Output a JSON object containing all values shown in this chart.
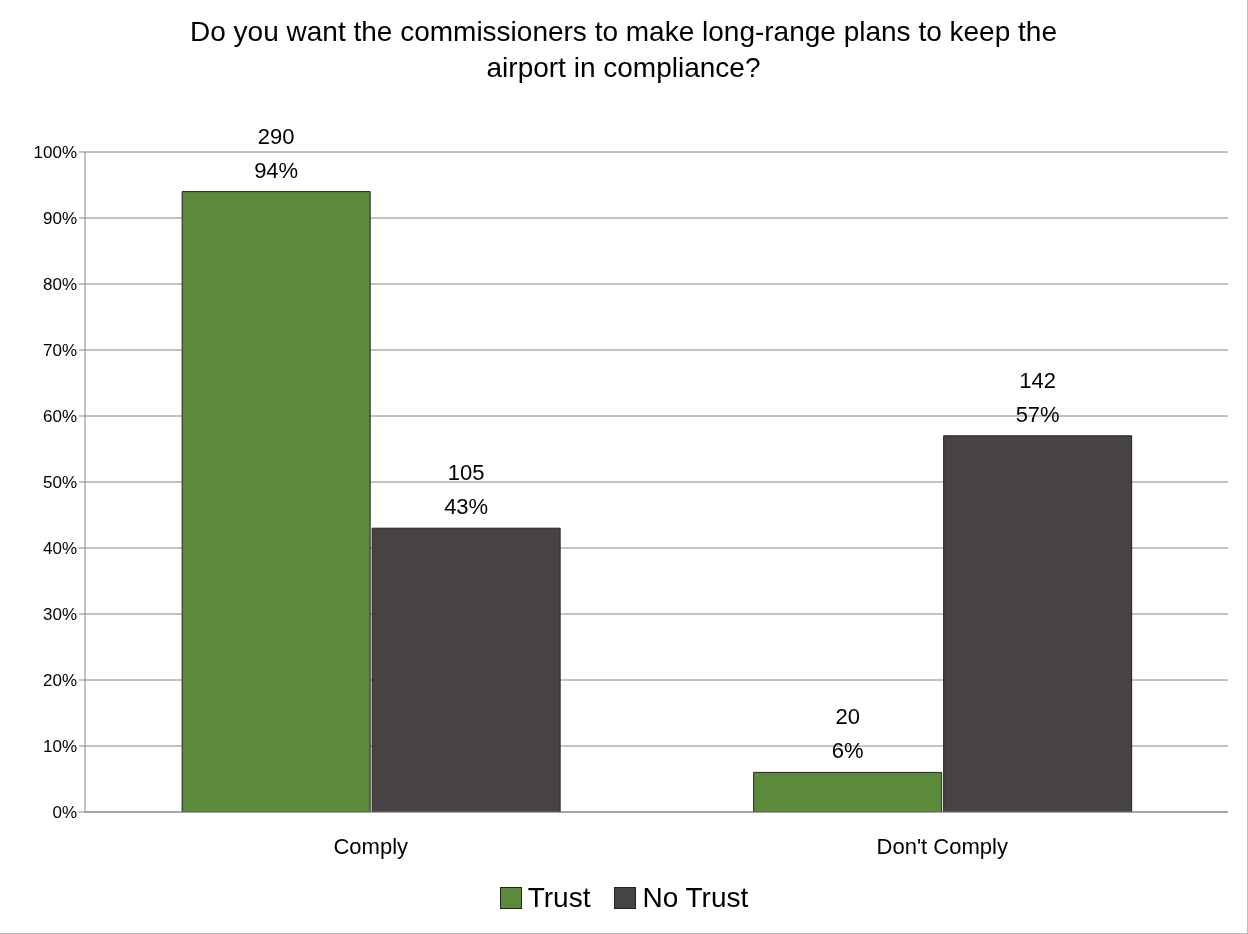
{
  "chart_data": {
    "type": "bar",
    "title": "Do you want the commissioners to make long-range plans to keep the airport in compliance?",
    "categories": [
      "Comply",
      "Don't Comply"
    ],
    "series": [
      {
        "name": "Trust",
        "color": "#5b8a3a",
        "values": [
          94,
          6
        ],
        "value_labels": [
          "290\n94%",
          "20\n6%"
        ]
      },
      {
        "name": "No Trust",
        "color": "#474345",
        "values": [
          43,
          57
        ],
        "value_labels": [
          "105\n43%",
          "142\n57%"
        ]
      }
    ],
    "ylim": [
      0,
      100
    ],
    "yticks": [
      {
        "value": 0,
        "label": "0%"
      },
      {
        "value": 10,
        "label": "10%"
      },
      {
        "value": 20,
        "label": "20%"
      },
      {
        "value": 30,
        "label": "30%"
      },
      {
        "value": 40,
        "label": "40%"
      },
      {
        "value": 50,
        "label": "50%"
      },
      {
        "value": 60,
        "label": "60%"
      },
      {
        "value": 70,
        "label": "70%"
      },
      {
        "value": 80,
        "label": "80%"
      },
      {
        "value": 90,
        "label": "90%"
      },
      {
        "value": 100,
        "label": "100%"
      }
    ],
    "grid": "y",
    "legend": "bottom"
  }
}
